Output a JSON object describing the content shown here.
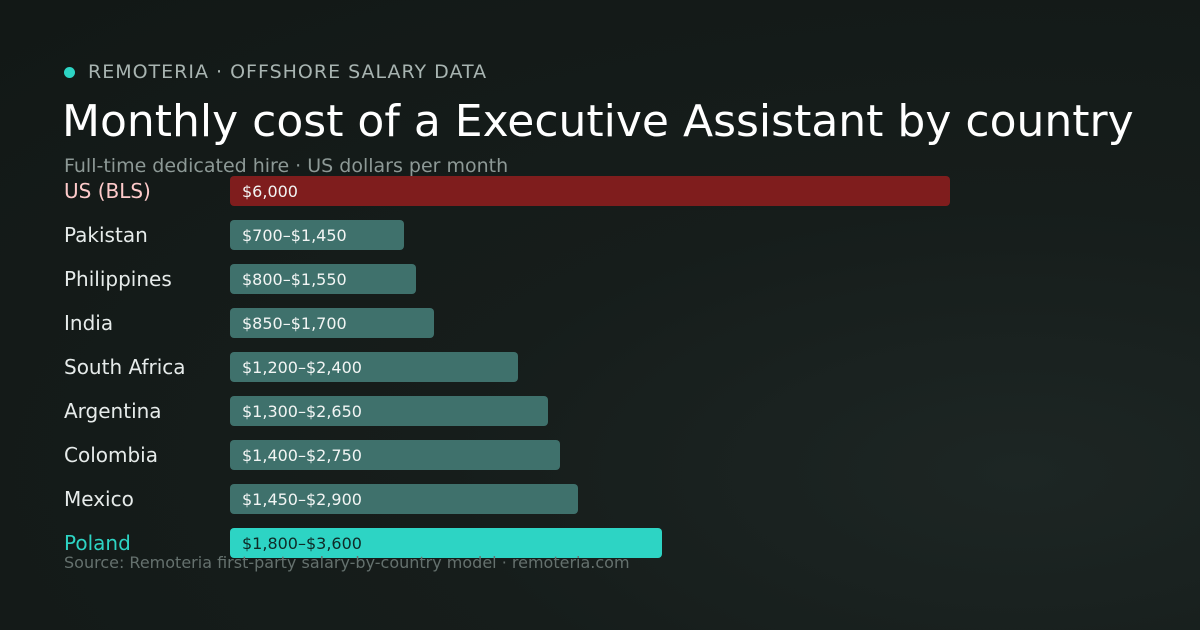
{
  "header": {
    "brand": "REMOTERIA · OFFSHORE SALARY DATA",
    "title": "Monthly cost of a Executive Assistant by country",
    "subtitle": "Full-time dedicated hire · US dollars per month"
  },
  "footer": {
    "source": "Source: Remoteria first-party salary-by-country model · remoteria.com"
  },
  "colors": {
    "accent": "#2dd4c4",
    "us_bar": "#7f1d1d",
    "us_label": "#fecaca",
    "range_bar": "#3f716c",
    "highlight_bar": "#2dd4c4",
    "highlight_label": "#2dd4c4",
    "label": "#e6ebea"
  },
  "chart_data": {
    "type": "bar",
    "orientation": "horizontal",
    "title": "Monthly cost of a Executive Assistant by country",
    "subtitle": "Full-time dedicated hire · US dollars per month",
    "unit": "USD per month",
    "categories": [
      "US (BLS)",
      "Pakistan",
      "Philippines",
      "India",
      "South Africa",
      "Argentina",
      "Colombia",
      "Mexico",
      "Poland"
    ],
    "data_labels": [
      "$6,000",
      "$700–$1,450",
      "$800–$1,550",
      "$850–$1,700",
      "$1,200–$2,400",
      "$1,300–$2,650",
      "$1,400–$2,750",
      "$1,450–$2,900",
      "$1,800–$3,600"
    ],
    "low": [
      6000,
      700,
      800,
      850,
      1200,
      1300,
      1400,
      1450,
      1800
    ],
    "high": [
      6000,
      1450,
      1550,
      1700,
      2400,
      2650,
      2750,
      2900,
      3600
    ],
    "highlight": [
      "US (BLS)",
      "Poland"
    ],
    "xlim": [
      0,
      6000
    ],
    "grid": false,
    "legend": "none"
  }
}
